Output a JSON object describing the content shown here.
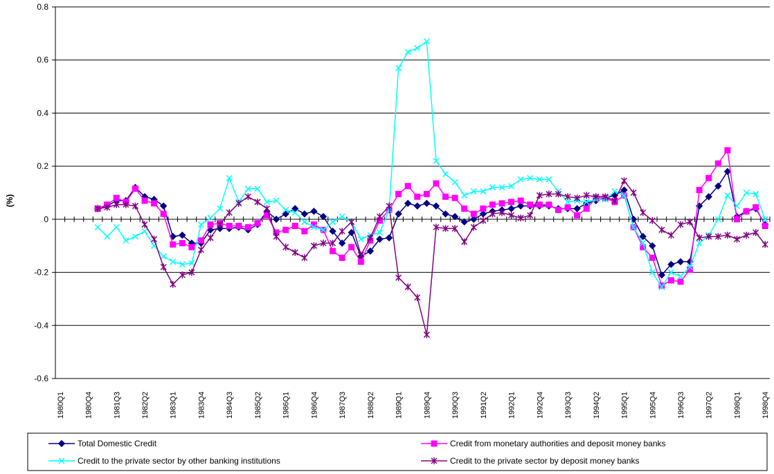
{
  "chart_data": {
    "type": "line",
    "y_label": "(%)",
    "categories": [
      "1980Q1",
      null,
      null,
      "1980Q4",
      null,
      null,
      "1981Q3",
      null,
      null,
      "1982Q2",
      null,
      null,
      "1983Q1",
      null,
      null,
      "1983Q4",
      null,
      null,
      "1984Q3",
      null,
      null,
      "1985Q2",
      null,
      null,
      "1986Q1",
      null,
      null,
      "1986Q4",
      null,
      null,
      "1987Q3",
      null,
      null,
      "1988Q2",
      null,
      null,
      "1989Q1",
      null,
      null,
      "1989Q4",
      null,
      null,
      "1990Q3",
      null,
      null,
      "1991Q2",
      null,
      null,
      "1992Q1",
      null,
      null,
      "1992Q4",
      null,
      null,
      "1993Q3",
      null,
      null,
      "1994Q2",
      null,
      null,
      "1995Q1",
      null,
      null,
      "1995Q4",
      null,
      null,
      "1996Q3",
      null,
      null,
      "1997Q2",
      null,
      null,
      "1998Q1",
      null,
      null,
      "1998Q4"
    ],
    "ylim": [
      -0.6,
      0.8
    ],
    "yticks": [
      -0.6,
      -0.4,
      -0.2,
      0,
      0.2,
      0.4,
      0.6,
      0.8
    ],
    "grid": true,
    "legend": "bottom",
    "series": [
      {
        "name": "Total Domestic Credit",
        "color": "#000080",
        "marker": "diamond",
        "values": [
          null,
          null,
          null,
          null,
          0.04,
          0.05,
          0.07,
          0.07,
          0.12,
          0.085,
          0.075,
          0.05,
          -0.065,
          -0.06,
          -0.09,
          -0.09,
          -0.04,
          -0.035,
          -0.035,
          -0.03,
          -0.04,
          -0.02,
          0.03,
          0.0,
          0.02,
          0.04,
          0.02,
          0.03,
          0.01,
          -0.045,
          -0.09,
          -0.05,
          -0.14,
          -0.12,
          -0.075,
          -0.07,
          0.02,
          0.06,
          0.05,
          0.06,
          0.05,
          0.02,
          0.01,
          -0.01,
          0.0,
          0.02,
          0.03,
          0.035,
          0.04,
          0.05,
          0.05,
          0.05,
          0.05,
          0.04,
          0.04,
          0.04,
          0.06,
          0.07,
          0.08,
          0.09,
          0.11,
          0.0,
          -0.065,
          -0.1,
          -0.21,
          -0.17,
          -0.16,
          -0.16,
          0.05,
          0.085,
          0.125,
          0.18,
          0.01,
          0.03,
          0.04,
          -0.02
        ]
      },
      {
        "name": "Credit from monetary authorities and deposit money banks",
        "color": "#ff00ff",
        "marker": "square",
        "values": [
          null,
          null,
          null,
          null,
          0.04,
          0.055,
          0.08,
          0.065,
          0.115,
          0.07,
          0.06,
          0.02,
          -0.095,
          -0.09,
          -0.105,
          -0.08,
          -0.02,
          -0.015,
          -0.025,
          -0.025,
          -0.03,
          -0.015,
          0.015,
          -0.05,
          -0.04,
          -0.025,
          -0.045,
          -0.02,
          -0.04,
          -0.12,
          -0.145,
          -0.105,
          -0.16,
          -0.08,
          -0.005,
          0.035,
          0.095,
          0.125,
          0.085,
          0.095,
          0.135,
          0.085,
          0.08,
          0.04,
          0.02,
          0.04,
          0.055,
          0.06,
          0.065,
          0.07,
          0.055,
          0.055,
          0.055,
          0.035,
          0.045,
          0.015,
          0.04,
          0.08,
          0.08,
          0.065,
          0.09,
          -0.03,
          -0.105,
          -0.145,
          -0.25,
          -0.23,
          -0.235,
          -0.19,
          0.11,
          0.155,
          0.21,
          0.26,
          0.0,
          0.03,
          0.045,
          -0.025
        ]
      },
      {
        "name": "Credit to the private sector by other banking institutions",
        "color": "#00ffff",
        "marker": "x",
        "values": [
          null,
          null,
          null,
          null,
          -0.03,
          -0.065,
          -0.03,
          -0.08,
          -0.065,
          -0.045,
          -0.1,
          -0.14,
          -0.16,
          -0.17,
          -0.165,
          -0.02,
          0.005,
          0.04,
          0.155,
          0.065,
          0.115,
          0.115,
          0.065,
          0.07,
          0.035,
          0.025,
          -0.01,
          -0.03,
          -0.04,
          -0.01,
          0.01,
          -0.01,
          -0.075,
          -0.06,
          -0.05,
          0.035,
          0.57,
          0.63,
          0.645,
          0.67,
          0.22,
          0.17,
          0.14,
          0.09,
          0.105,
          0.105,
          0.12,
          0.12,
          0.125,
          0.15,
          0.155,
          0.15,
          0.15,
          0.105,
          0.065,
          0.07,
          0.065,
          0.075,
          0.075,
          0.105,
          0.09,
          -0.03,
          -0.09,
          -0.2,
          -0.255,
          -0.2,
          -0.215,
          -0.18,
          -0.09,
          -0.06,
          0.0,
          0.09,
          0.05,
          0.1,
          0.095,
          0.0
        ]
      },
      {
        "name": "Credit to the private sector by deposit money banks",
        "color": "#800080",
        "marker": "star",
        "values": [
          null,
          null,
          null,
          null,
          0.04,
          0.045,
          0.055,
          0.055,
          0.05,
          -0.02,
          -0.075,
          -0.18,
          -0.245,
          -0.21,
          -0.2,
          -0.115,
          -0.07,
          -0.02,
          0.025,
          0.06,
          0.085,
          0.065,
          0.04,
          -0.065,
          -0.105,
          -0.125,
          -0.145,
          -0.1,
          -0.09,
          -0.09,
          -0.045,
          -0.01,
          -0.135,
          -0.07,
          0.01,
          0.05,
          -0.22,
          -0.255,
          -0.295,
          -0.435,
          -0.03,
          -0.035,
          -0.035,
          -0.085,
          -0.03,
          -0.005,
          0.02,
          0.025,
          0.015,
          0.005,
          0.015,
          0.09,
          0.095,
          0.095,
          0.085,
          0.08,
          0.09,
          0.085,
          0.085,
          0.07,
          0.145,
          0.1,
          0.025,
          -0.005,
          -0.04,
          -0.06,
          -0.02,
          -0.01,
          -0.07,
          -0.065,
          -0.065,
          -0.06,
          -0.075,
          -0.06,
          -0.05,
          -0.095
        ]
      }
    ]
  }
}
